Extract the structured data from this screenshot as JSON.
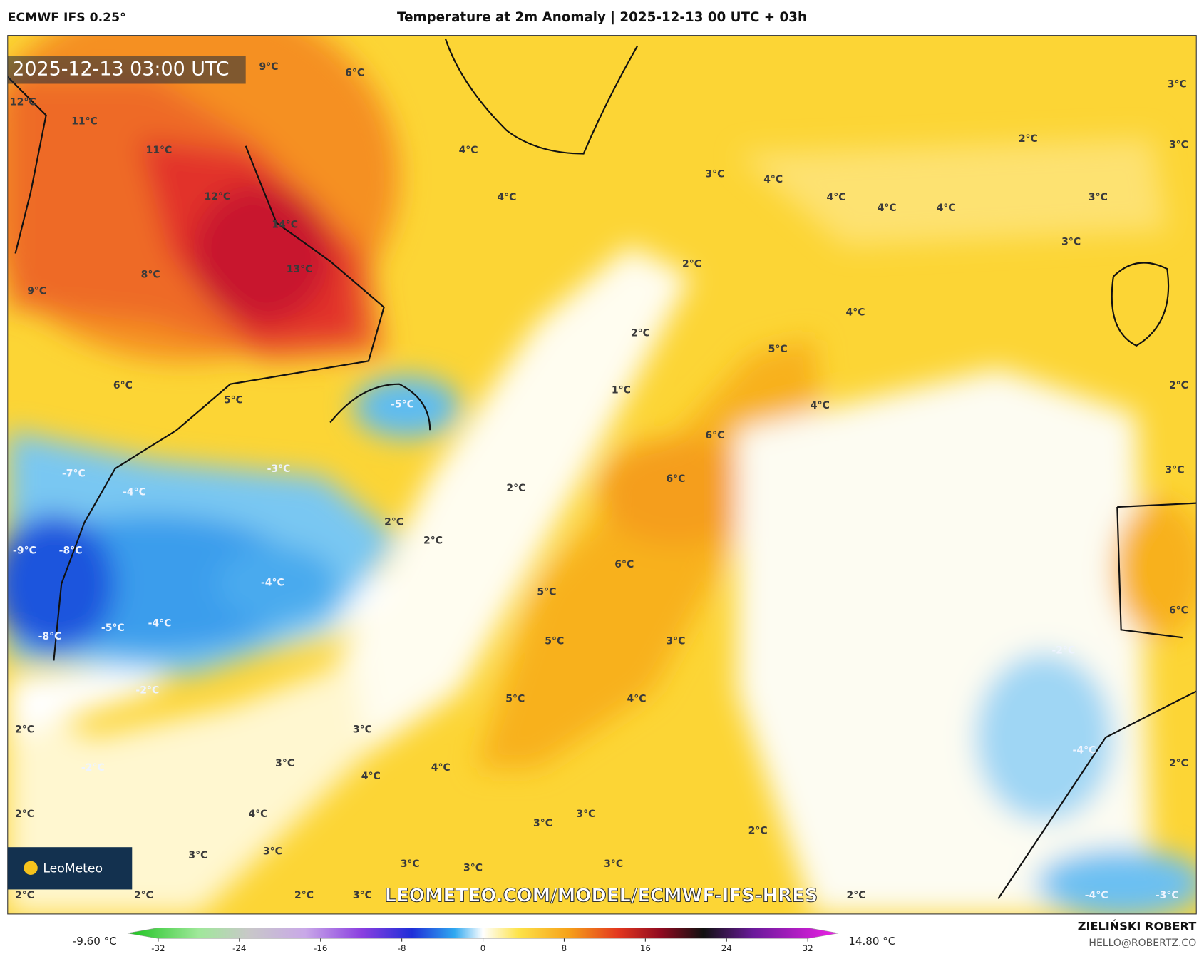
{
  "header": {
    "model": "ECMWF IFS 0.25°",
    "title": "Temperature at 2m Anomaly | 2025-12-13 00 UTC + 03h"
  },
  "map": {
    "timestamp": "2025-12-13 03:00 UTC",
    "watermark": "LEOMETEO.COM/MODEL/ECMWF-IFS-HRES",
    "logo": "LeoMeteo",
    "labels": [
      "9°C",
      "6°C",
      "12°C",
      "11°C",
      "11°C",
      "4°C",
      "12°C",
      "14°C",
      "4°C",
      "3°C",
      "4°C",
      "4°C",
      "4°C",
      "4°C",
      "2°C",
      "3°C",
      "3°C",
      "3°C",
      "3°C",
      "8°C",
      "13°C",
      "9°C",
      "2°C",
      "4°C",
      "2°C",
      "5°C",
      "6°C",
      "5°C",
      "-5°C",
      "1°C",
      "4°C",
      "6°C",
      "-7°C",
      "-3°C",
      "-4°C",
      "6°C",
      "2°C",
      "2°C",
      "2°C",
      "-9°C",
      "-8°C",
      "6°C",
      "-4°C",
      "5°C",
      "-5°C",
      "-4°C",
      "-8°C",
      "5°C",
      "3°C",
      "-2°C",
      "-2°C",
      "5°C",
      "4°C",
      "2°C",
      "3°C",
      "-4°C",
      "-2°C",
      "3°C",
      "4°C",
      "4°C",
      "2°C",
      "2°C",
      "4°C",
      "3°C",
      "3°C",
      "2°C",
      "3°C",
      "3°C",
      "3°C",
      "3°C",
      "3°C",
      "2°C",
      "3°C",
      "2°C",
      "2°C",
      "2°C",
      "-4°C",
      "-3°C",
      "3°C",
      "2°C",
      "6°C"
    ]
  },
  "colorbar": {
    "min_label": "-9.60 °C",
    "max_label": "14.80 °C",
    "range": [
      -32,
      32
    ],
    "ticks": [
      -32,
      -24,
      -16,
      -8,
      0,
      8,
      16,
      24,
      32
    ]
  },
  "footer": {
    "author": "ZIELIŃSKI ROBERT",
    "email": "HELLO@ROBERTZ.CO"
  }
}
